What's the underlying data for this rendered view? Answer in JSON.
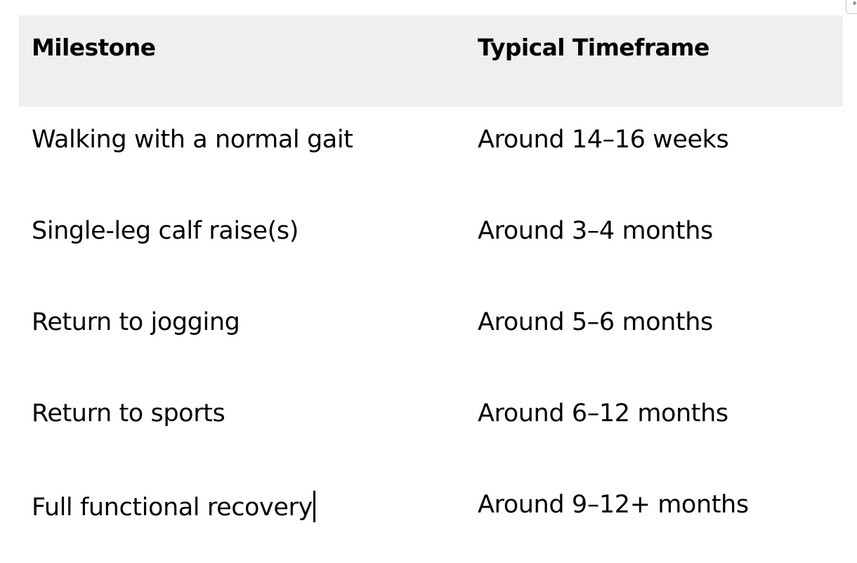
{
  "table": {
    "headers": [
      "Milestone",
      "Typical Timeframe"
    ],
    "rows": [
      [
        "Walking with a normal gait",
        "Around 14–16 weeks"
      ],
      [
        "Single-leg calf raise(s)",
        "Around 3–4 months"
      ],
      [
        "Return to jogging",
        "Around 5–6 months"
      ],
      [
        "Return to sports",
        "Around 6–12 months"
      ],
      [
        "Full functional recovery",
        "Around 9–12+ months"
      ]
    ]
  },
  "colors": {
    "header_background": "#efefef",
    "text": "#000000",
    "background": "#ffffff"
  },
  "icons": {
    "corner": "table-options-handle-icon"
  }
}
